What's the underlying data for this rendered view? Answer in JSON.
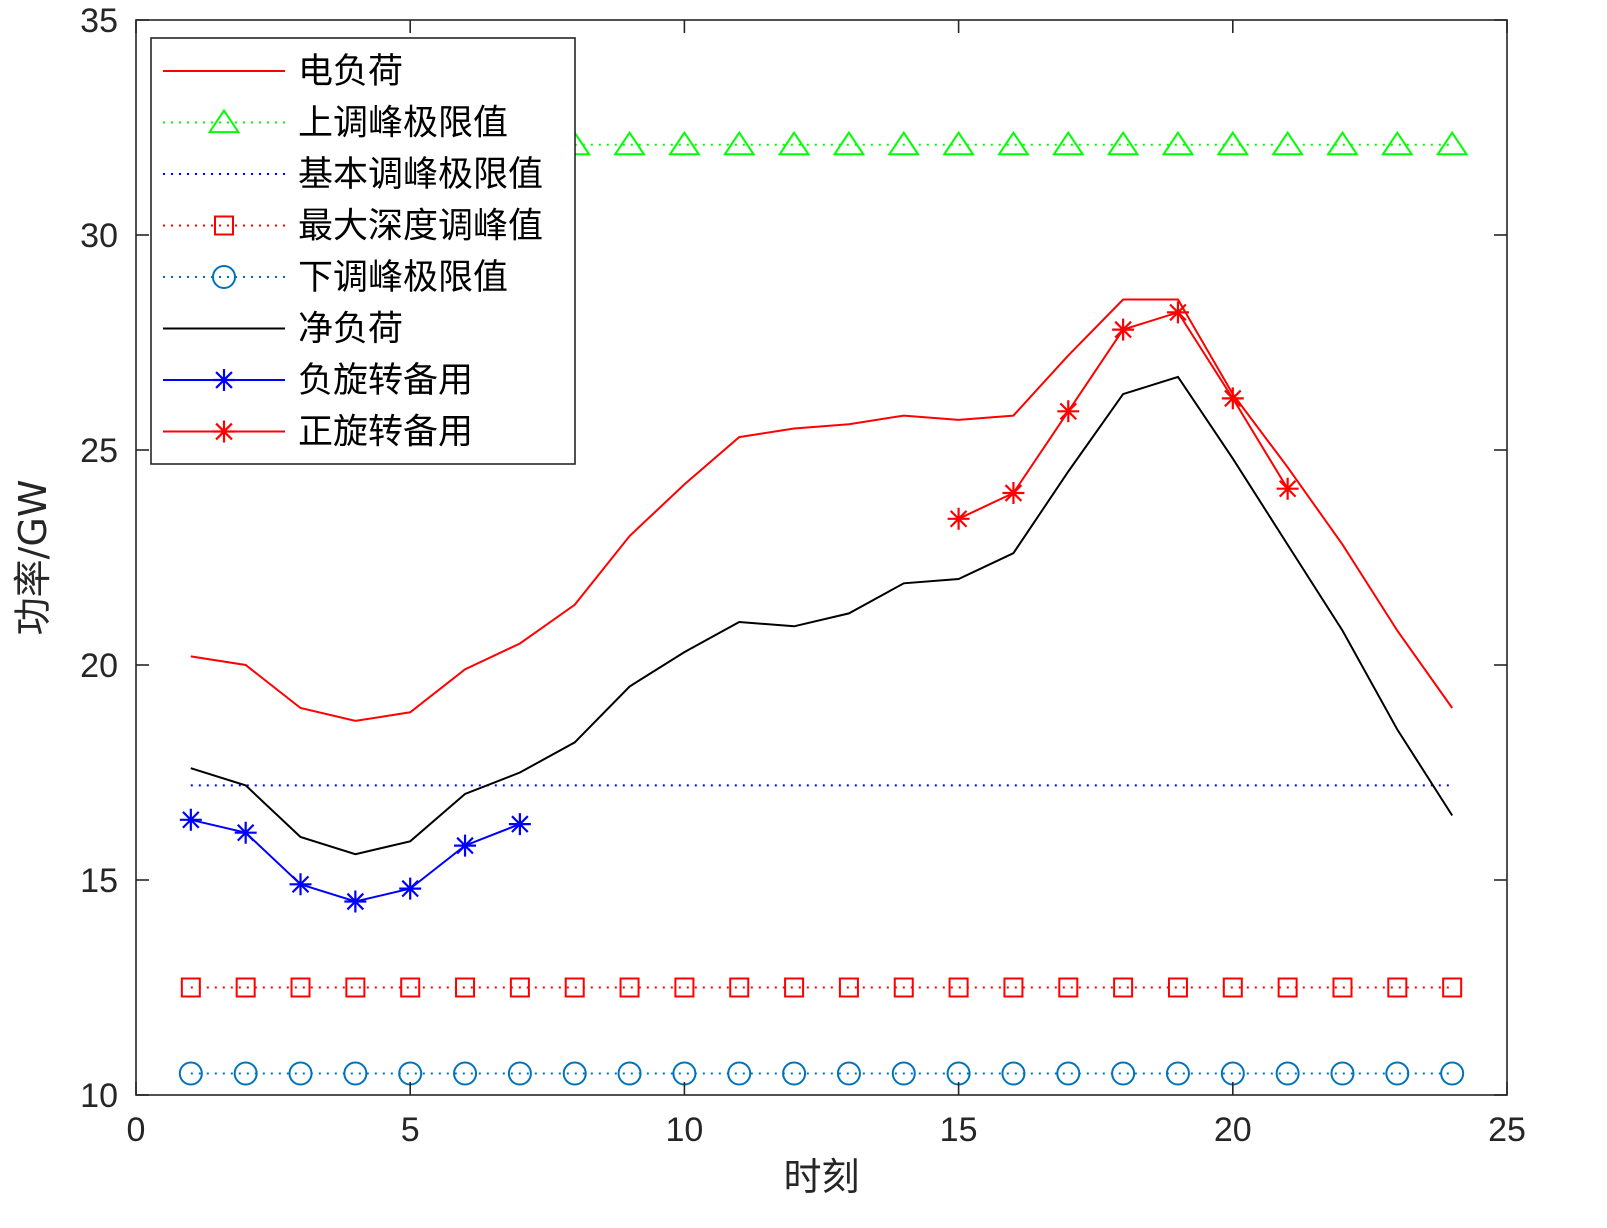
{
  "chart_data": {
    "type": "line",
    "title": "",
    "xlabel": "时刻",
    "ylabel": "功率/GW",
    "xlim": [
      0,
      25
    ],
    "ylim": [
      10,
      35
    ],
    "xticks": [
      0,
      5,
      10,
      15,
      20,
      25
    ],
    "yticks": [
      10,
      15,
      20,
      25,
      30,
      35
    ],
    "grid": false,
    "legend_position": "top-left",
    "series": [
      {
        "name": "电负荷",
        "color": "#ff0000",
        "line": "solid",
        "marker": "none",
        "x": [
          1,
          2,
          3,
          4,
          5,
          6,
          7,
          8,
          9,
          10,
          11,
          12,
          13,
          14,
          15,
          16,
          17,
          18,
          19,
          20,
          21,
          22,
          23,
          24
        ],
        "y": [
          20.2,
          20.0,
          19.0,
          18.7,
          18.9,
          19.9,
          20.5,
          21.4,
          23.0,
          24.2,
          25.3,
          25.5,
          25.6,
          25.8,
          25.7,
          25.8,
          27.2,
          28.5,
          28.5,
          26.3,
          24.6,
          22.8,
          20.8,
          19.0
        ]
      },
      {
        "name": "上调峰极限值",
        "color": "#00ff00",
        "line": "dotted",
        "marker": "triangle",
        "x": [
          1,
          2,
          3,
          4,
          5,
          6,
          7,
          8,
          9,
          10,
          11,
          12,
          13,
          14,
          15,
          16,
          17,
          18,
          19,
          20,
          21,
          22,
          23,
          24
        ],
        "y": [
          32.1,
          32.1,
          32.1,
          32.1,
          32.1,
          32.1,
          32.1,
          32.1,
          32.1,
          32.1,
          32.1,
          32.1,
          32.1,
          32.1,
          32.1,
          32.1,
          32.1,
          32.1,
          32.1,
          32.1,
          32.1,
          32.1,
          32.1,
          32.1
        ]
      },
      {
        "name": "基本调峰极限值",
        "color": "#0000ff",
        "line": "dotted",
        "marker": "none",
        "x": [
          1,
          2,
          3,
          4,
          5,
          6,
          7,
          8,
          9,
          10,
          11,
          12,
          13,
          14,
          15,
          16,
          17,
          18,
          19,
          20,
          21,
          22,
          23,
          24
        ],
        "y": [
          17.2,
          17.2,
          17.2,
          17.2,
          17.2,
          17.2,
          17.2,
          17.2,
          17.2,
          17.2,
          17.2,
          17.2,
          17.2,
          17.2,
          17.2,
          17.2,
          17.2,
          17.2,
          17.2,
          17.2,
          17.2,
          17.2,
          17.2,
          17.2
        ]
      },
      {
        "name": "最大深度调峰值",
        "color": "#ff0000",
        "line": "dotted",
        "marker": "square",
        "x": [
          1,
          2,
          3,
          4,
          5,
          6,
          7,
          8,
          9,
          10,
          11,
          12,
          13,
          14,
          15,
          16,
          17,
          18,
          19,
          20,
          21,
          22,
          23,
          24
        ],
        "y": [
          12.5,
          12.5,
          12.5,
          12.5,
          12.5,
          12.5,
          12.5,
          12.5,
          12.5,
          12.5,
          12.5,
          12.5,
          12.5,
          12.5,
          12.5,
          12.5,
          12.5,
          12.5,
          12.5,
          12.5,
          12.5,
          12.5,
          12.5,
          12.5
        ]
      },
      {
        "name": "下调峰极限值",
        "color": "#0072bd",
        "line": "dotted",
        "marker": "circle",
        "x": [
          1,
          2,
          3,
          4,
          5,
          6,
          7,
          8,
          9,
          10,
          11,
          12,
          13,
          14,
          15,
          16,
          17,
          18,
          19,
          20,
          21,
          22,
          23,
          24
        ],
        "y": [
          10.5,
          10.5,
          10.5,
          10.5,
          10.5,
          10.5,
          10.5,
          10.5,
          10.5,
          10.5,
          10.5,
          10.5,
          10.5,
          10.5,
          10.5,
          10.5,
          10.5,
          10.5,
          10.5,
          10.5,
          10.5,
          10.5,
          10.5,
          10.5
        ]
      },
      {
        "name": "净负荷",
        "color": "#000000",
        "line": "solid",
        "marker": "none",
        "x": [
          1,
          2,
          3,
          4,
          5,
          6,
          7,
          8,
          9,
          10,
          11,
          12,
          13,
          14,
          15,
          16,
          17,
          18,
          19,
          20,
          21,
          22,
          23,
          24
        ],
        "y": [
          17.6,
          17.2,
          16.0,
          15.6,
          15.9,
          17.0,
          17.5,
          18.2,
          19.5,
          20.3,
          21.0,
          20.9,
          21.2,
          21.9,
          22.0,
          22.6,
          24.5,
          26.3,
          26.7,
          24.8,
          22.8,
          20.8,
          18.5,
          16.5
        ]
      },
      {
        "name": "负旋转备用",
        "color": "#0000ff",
        "line": "solid",
        "marker": "asterisk",
        "x": [
          1,
          2,
          3,
          4,
          5,
          6,
          7
        ],
        "y": [
          16.4,
          16.1,
          14.9,
          14.5,
          14.8,
          15.8,
          16.3
        ]
      },
      {
        "name": "正旋转备用",
        "color": "#ff0000",
        "line": "solid",
        "marker": "asterisk",
        "x": [
          15,
          16,
          17,
          18,
          19,
          20,
          21
        ],
        "y": [
          23.4,
          24.0,
          25.9,
          27.8,
          28.2,
          26.2,
          24.1
        ]
      }
    ]
  }
}
